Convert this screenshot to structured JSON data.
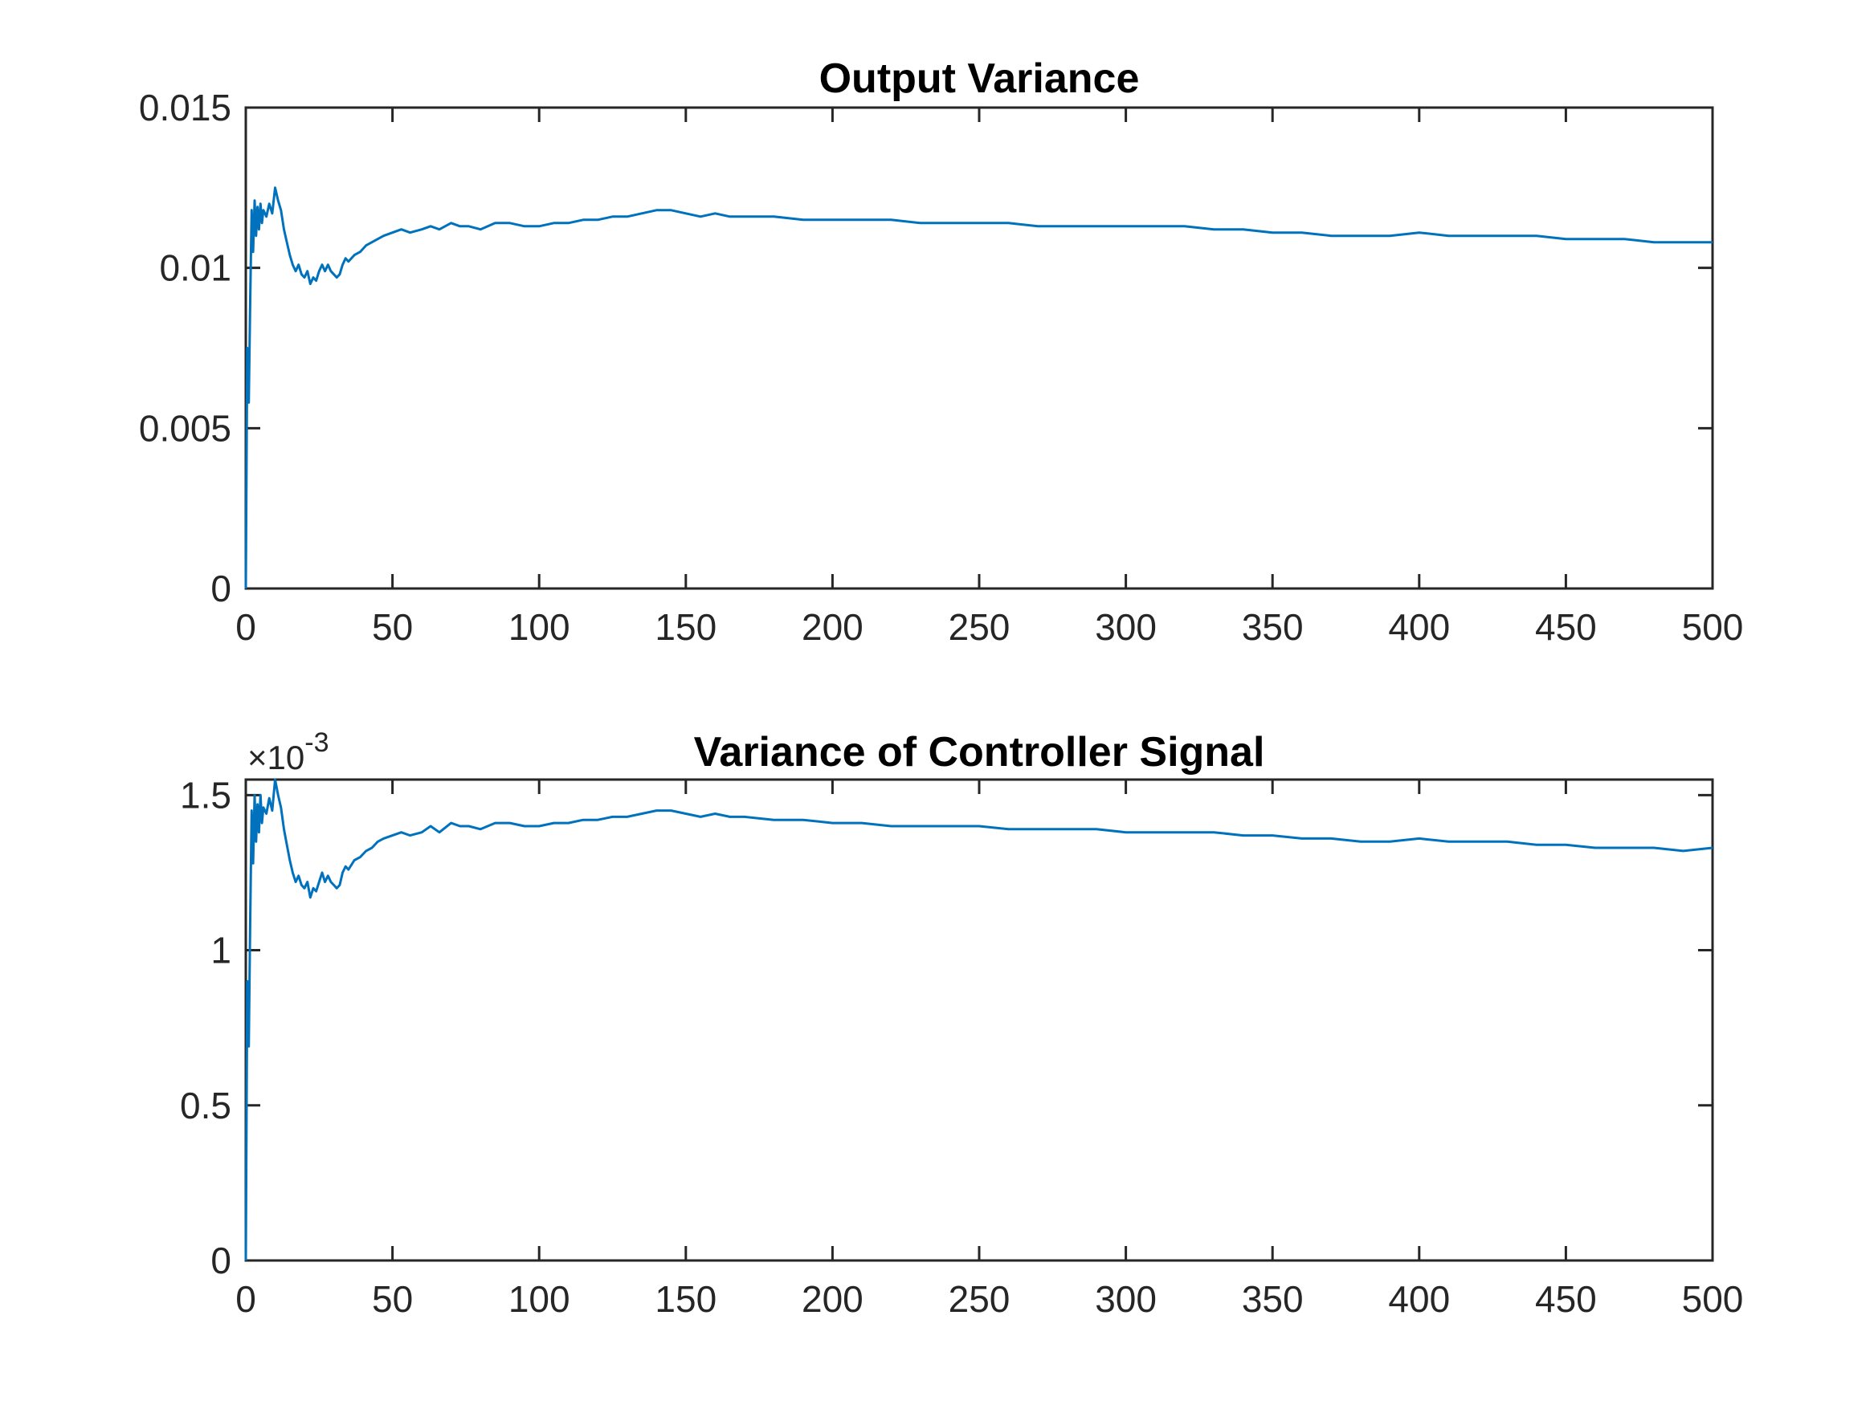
{
  "chart_data": [
    {
      "type": "line",
      "title": "Output Variance",
      "xlabel": "",
      "ylabel": "",
      "xlim": [
        0,
        500
      ],
      "ylim": [
        0,
        0.015
      ],
      "xticks": [
        0,
        50,
        100,
        150,
        200,
        250,
        300,
        350,
        400,
        450,
        500
      ],
      "xtick_labels": [
        "0",
        "50",
        "100",
        "150",
        "200",
        "250",
        "300",
        "350",
        "400",
        "450",
        "500"
      ],
      "yticks": [
        0,
        0.005,
        0.01,
        0.015
      ],
      "ytick_labels": [
        "0",
        "0.005",
        "0.01",
        "0.015"
      ],
      "grid": false,
      "color": "#0072BD",
      "series": [
        {
          "x": [
            0,
            0.5,
            1,
            1.5,
            2,
            2.5,
            3,
            3.5,
            4,
            4.5,
            5,
            5.5,
            6,
            7,
            8,
            9,
            10,
            11,
            12,
            13,
            14,
            15,
            16,
            17,
            18,
            19,
            20,
            21,
            22,
            23,
            24,
            25,
            26,
            27,
            28,
            29,
            30,
            31,
            32,
            33,
            34,
            35,
            37,
            39,
            41,
            43,
            45,
            47,
            50,
            53,
            56,
            60,
            63,
            66,
            70,
            73,
            76,
            80,
            85,
            90,
            95,
            100,
            105,
            110,
            115,
            120,
            125,
            130,
            135,
            140,
            145,
            150,
            155,
            160,
            165,
            170,
            180,
            190,
            200,
            210,
            220,
            230,
            240,
            250,
            260,
            270,
            280,
            290,
            300,
            310,
            320,
            330,
            340,
            350,
            360,
            370,
            380,
            390,
            400,
            410,
            420,
            430,
            440,
            450,
            460,
            470,
            480,
            490,
            500
          ],
          "values": [
            0,
            0.0075,
            0.0058,
            0.009,
            0.0118,
            0.0105,
            0.0121,
            0.011,
            0.0119,
            0.0112,
            0.012,
            0.0114,
            0.0118,
            0.0116,
            0.012,
            0.0117,
            0.0125,
            0.0121,
            0.0118,
            0.0112,
            0.0108,
            0.0104,
            0.0101,
            0.0099,
            0.0101,
            0.0098,
            0.0097,
            0.0099,
            0.0095,
            0.0097,
            0.0096,
            0.0099,
            0.0101,
            0.0099,
            0.0101,
            0.0099,
            0.0098,
            0.0097,
            0.0098,
            0.0101,
            0.0103,
            0.0102,
            0.0104,
            0.0105,
            0.0107,
            0.0108,
            0.0109,
            0.011,
            0.0111,
            0.0112,
            0.0111,
            0.0112,
            0.0113,
            0.0112,
            0.0114,
            0.0113,
            0.0113,
            0.0112,
            0.0114,
            0.0114,
            0.0113,
            0.0113,
            0.0114,
            0.0114,
            0.0115,
            0.0115,
            0.0116,
            0.0116,
            0.0117,
            0.0118,
            0.0118,
            0.0117,
            0.0116,
            0.0117,
            0.0116,
            0.0116,
            0.0116,
            0.0115,
            0.0115,
            0.0115,
            0.0115,
            0.0114,
            0.0114,
            0.0114,
            0.0114,
            0.0113,
            0.0113,
            0.0113,
            0.0113,
            0.0113,
            0.0113,
            0.0112,
            0.0112,
            0.0111,
            0.0111,
            0.011,
            0.011,
            0.011,
            0.0111,
            0.011,
            0.011,
            0.011,
            0.011,
            0.0109,
            0.0109,
            0.0109,
            0.0108,
            0.0108,
            0.0108
          ]
        }
      ]
    },
    {
      "type": "line",
      "title": "Variance of Controller Signal",
      "xlabel": "",
      "ylabel": "",
      "xlim": [
        0,
        500
      ],
      "ylim": [
        0,
        0.00155
      ],
      "axis_exponent_label": {
        "base": "×10",
        "exponent": "-3"
      },
      "xticks": [
        0,
        50,
        100,
        150,
        200,
        250,
        300,
        350,
        400,
        450,
        500
      ],
      "xtick_labels": [
        "0",
        "50",
        "100",
        "150",
        "200",
        "250",
        "300",
        "350",
        "400",
        "450",
        "500"
      ],
      "yticks": [
        0,
        0.0005,
        0.001,
        0.0015
      ],
      "ytick_labels": [
        "0",
        "0.5",
        "1",
        "1.5"
      ],
      "grid": false,
      "color": "#0072BD",
      "series": [
        {
          "x": [
            0,
            0.5,
            1,
            1.5,
            2,
            2.5,
            3,
            3.5,
            4,
            4.5,
            5,
            5.5,
            6,
            7,
            8,
            9,
            10,
            11,
            12,
            13,
            14,
            15,
            16,
            17,
            18,
            19,
            20,
            21,
            22,
            23,
            24,
            25,
            26,
            27,
            28,
            29,
            30,
            31,
            32,
            33,
            34,
            35,
            37,
            39,
            41,
            43,
            45,
            47,
            50,
            53,
            56,
            60,
            63,
            66,
            70,
            73,
            76,
            80,
            85,
            90,
            95,
            100,
            105,
            110,
            115,
            120,
            125,
            130,
            135,
            140,
            145,
            150,
            155,
            160,
            165,
            170,
            180,
            190,
            200,
            210,
            220,
            230,
            240,
            250,
            260,
            270,
            280,
            290,
            300,
            310,
            320,
            330,
            340,
            350,
            360,
            370,
            380,
            390,
            400,
            410,
            420,
            430,
            440,
            450,
            460,
            470,
            480,
            490,
            500
          ],
          "values": [
            0,
            0.0009,
            0.00069,
            0.0011,
            0.00145,
            0.00128,
            0.0015,
            0.00135,
            0.00147,
            0.00138,
            0.0015,
            0.00141,
            0.00146,
            0.00144,
            0.00149,
            0.00145,
            0.00155,
            0.0015,
            0.00146,
            0.00139,
            0.00134,
            0.00129,
            0.00125,
            0.00122,
            0.00124,
            0.00121,
            0.0012,
            0.00122,
            0.00117,
            0.0012,
            0.00119,
            0.00122,
            0.00125,
            0.00122,
            0.00124,
            0.00122,
            0.00121,
            0.0012,
            0.00121,
            0.00125,
            0.00127,
            0.00126,
            0.00129,
            0.0013,
            0.00132,
            0.00133,
            0.00135,
            0.00136,
            0.00137,
            0.00138,
            0.00137,
            0.00138,
            0.0014,
            0.00138,
            0.00141,
            0.0014,
            0.0014,
            0.00139,
            0.00141,
            0.00141,
            0.0014,
            0.0014,
            0.00141,
            0.00141,
            0.00142,
            0.00142,
            0.00143,
            0.00143,
            0.00144,
            0.00145,
            0.00145,
            0.00144,
            0.00143,
            0.00144,
            0.00143,
            0.00143,
            0.00142,
            0.00142,
            0.00141,
            0.00141,
            0.0014,
            0.0014,
            0.0014,
            0.0014,
            0.00139,
            0.00139,
            0.00139,
            0.00139,
            0.00138,
            0.00138,
            0.00138,
            0.00138,
            0.00137,
            0.00137,
            0.00136,
            0.00136,
            0.00135,
            0.00135,
            0.00136,
            0.00135,
            0.00135,
            0.00135,
            0.00134,
            0.00134,
            0.00133,
            0.00133,
            0.00133,
            0.00132,
            0.00133
          ]
        }
      ]
    }
  ]
}
